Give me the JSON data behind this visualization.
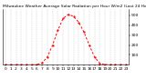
{
  "title": "Milwaukee Weather Average Solar Radiation per Hour W/m2 (Last 24 Hours)",
  "hours": [
    0,
    1,
    2,
    3,
    4,
    5,
    6,
    7,
    8,
    9,
    10,
    11,
    12,
    13,
    14,
    15,
    16,
    17,
    18,
    19,
    20,
    21,
    22,
    23
  ],
  "values": [
    0,
    0,
    0,
    0,
    0,
    0,
    2,
    18,
    80,
    200,
    350,
    470,
    510,
    490,
    430,
    330,
    200,
    80,
    15,
    2,
    0,
    0,
    0,
    0
  ],
  "line_color": "#ff0000",
  "bg_color": "#ffffff",
  "grid_color": "#b0b0b0",
  "ylim": [
    0,
    560
  ],
  "yticks": [
    100,
    200,
    300,
    400,
    500
  ],
  "xticks": [
    0,
    1,
    2,
    3,
    4,
    5,
    6,
    7,
    8,
    9,
    10,
    11,
    12,
    13,
    14,
    15,
    16,
    17,
    18,
    19,
    20,
    21,
    22,
    23
  ],
  "title_fontsize": 3.2,
  "tick_fontsize": 3.2
}
